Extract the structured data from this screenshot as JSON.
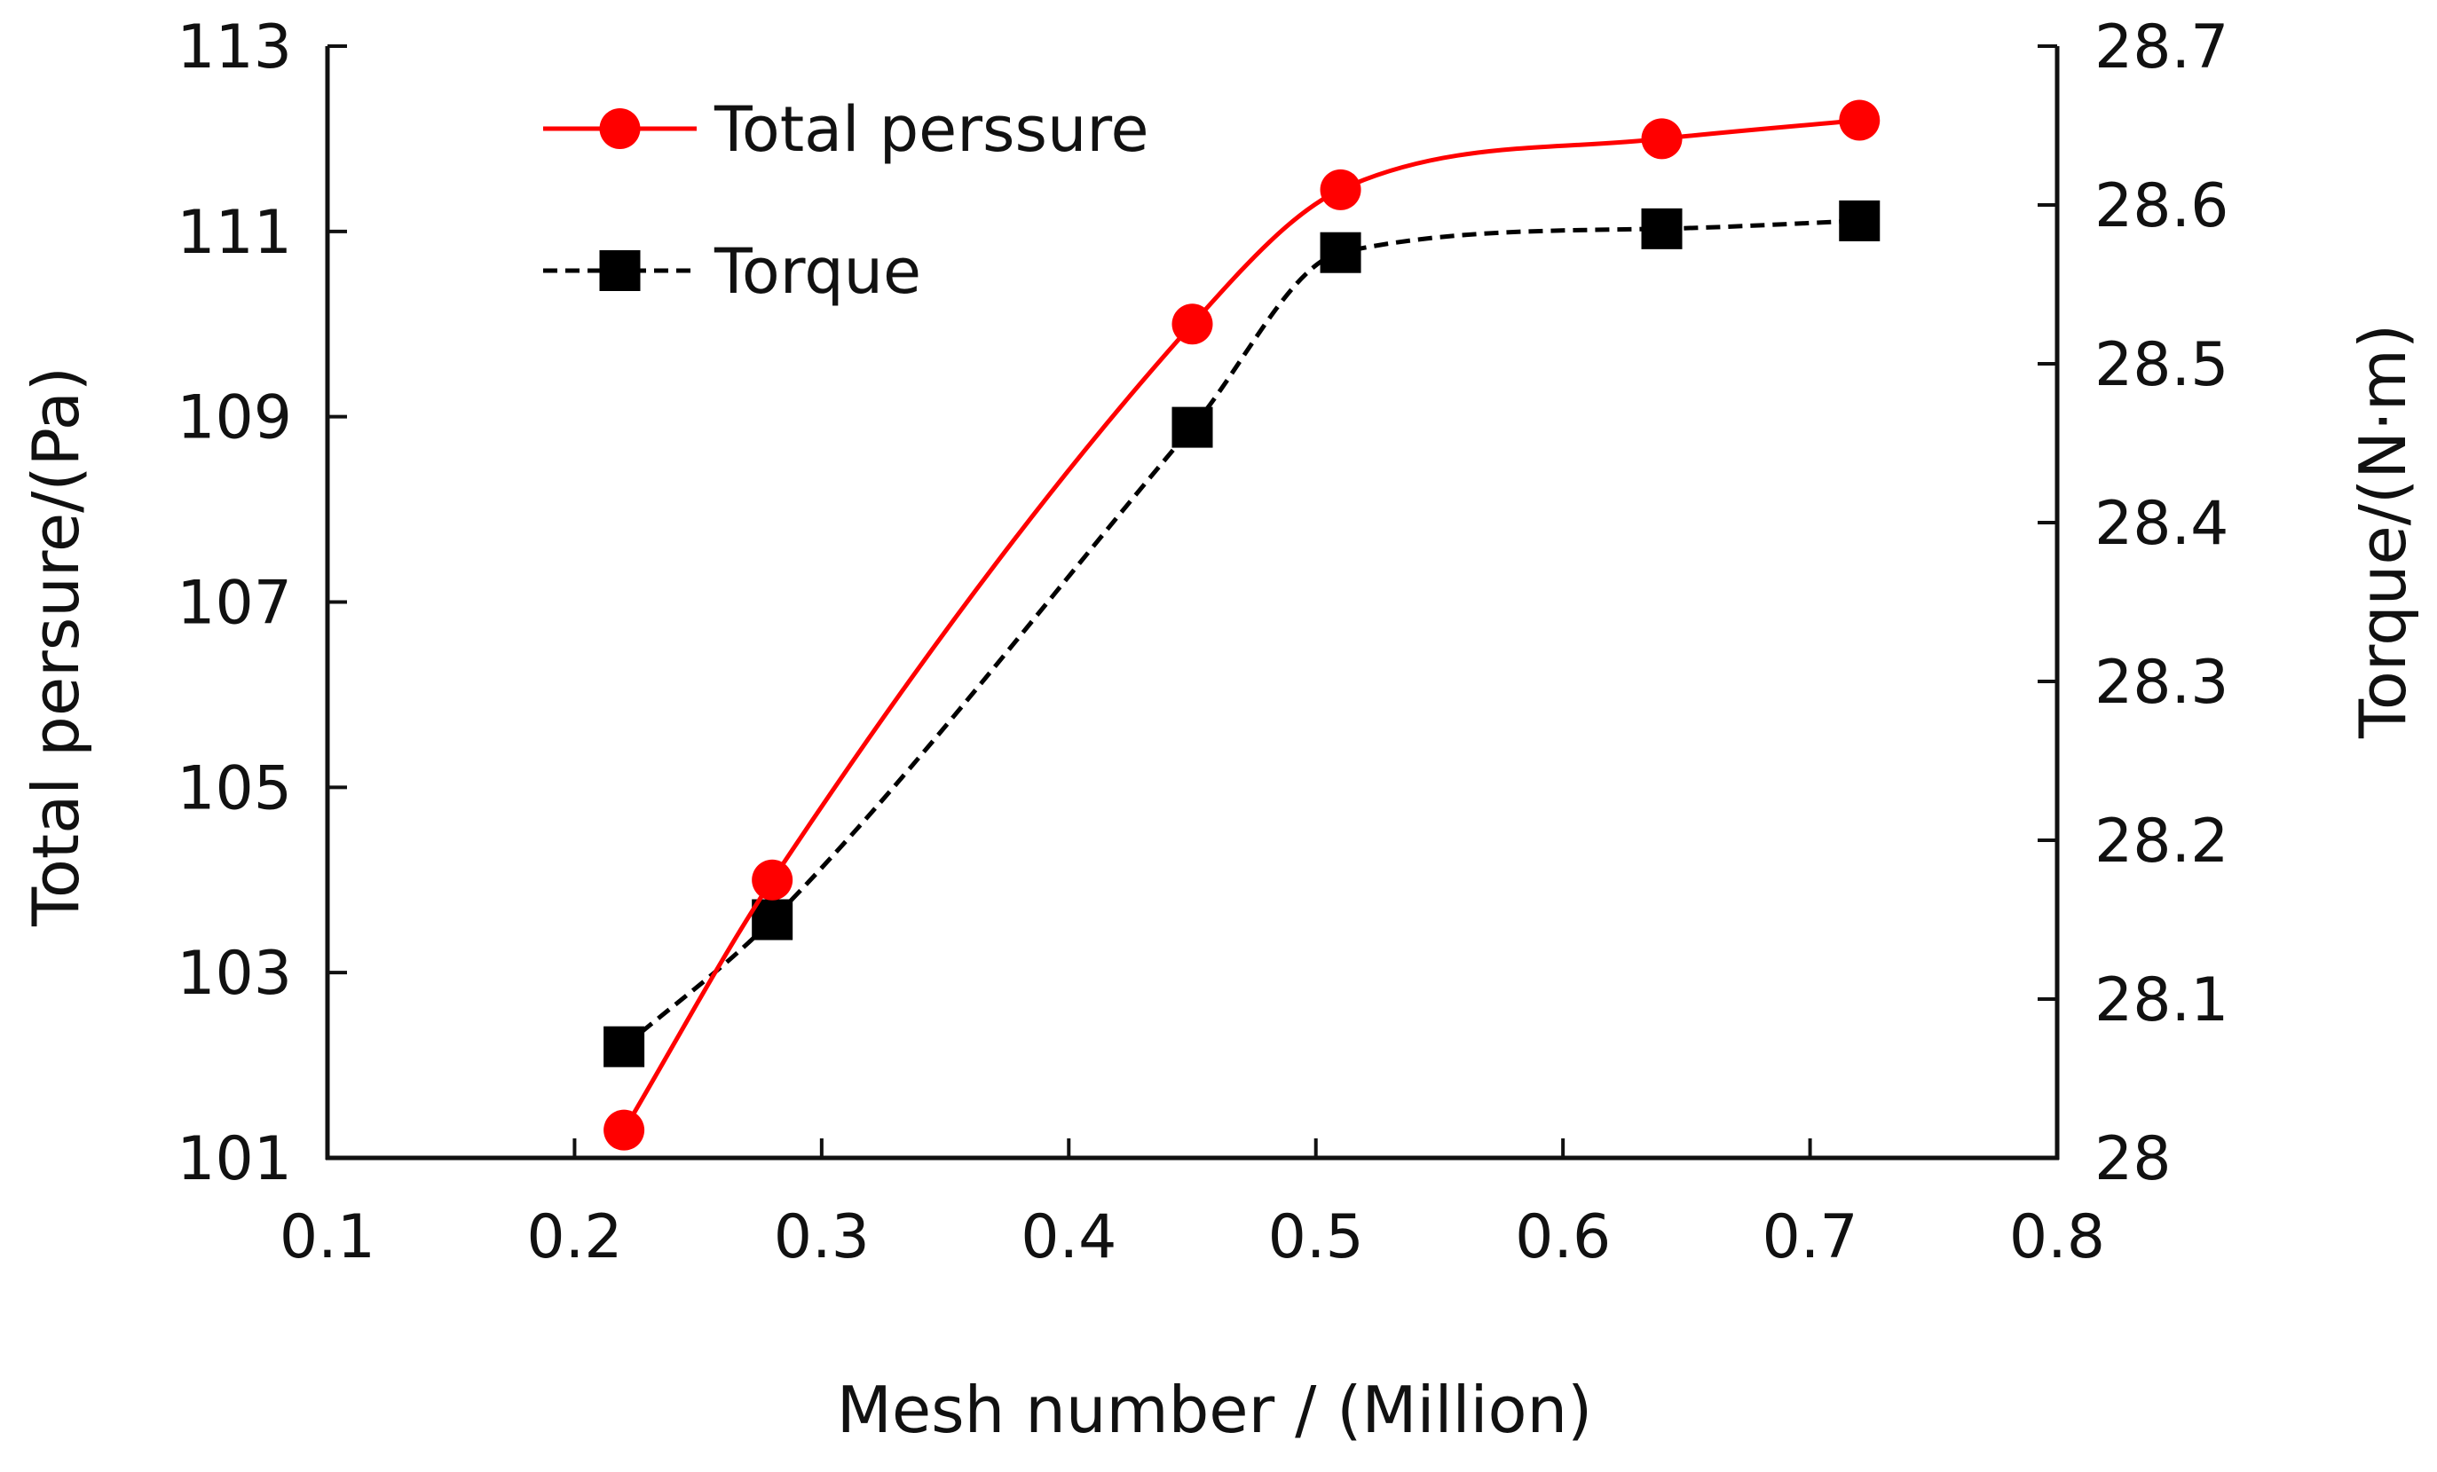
{
  "chart_data": {
    "type": "line",
    "title": "",
    "xlabel": "Mesh number / (Million)",
    "ylabel": "Total persure/(Pa)",
    "y2label": "Torque/(N·m)",
    "xlim": [
      0.1,
      0.8
    ],
    "ylim": [
      101,
      113
    ],
    "y2lim": [
      28,
      28.7
    ],
    "xticks": [
      "0.1",
      "0.2",
      "0.3",
      "0.4",
      "0.5",
      "0.6",
      "0.7",
      "0.8"
    ],
    "yticks": [
      "101",
      "103",
      "105",
      "107",
      "109",
      "111",
      "113"
    ],
    "y2ticks": [
      "28",
      "28.1",
      "28.2",
      "28.3",
      "28.4",
      "28.5",
      "28.6",
      "28.7"
    ],
    "grid": false,
    "legend_position": "top-left",
    "series": [
      {
        "name": "Total perssure",
        "axis": "left",
        "color": "#ff0000",
        "marker": "circle",
        "line_style": "solid",
        "smooth": true,
        "x": [
          0.22,
          0.28,
          0.45,
          0.51,
          0.64,
          0.72
        ],
        "y": [
          101.3,
          104.0,
          110.0,
          111.45,
          112.0,
          112.2
        ]
      },
      {
        "name": "Torque",
        "axis": "right",
        "color": "#000000",
        "marker": "square",
        "line_style": "dashed",
        "smooth": true,
        "x": [
          0.22,
          0.28,
          0.45,
          0.51,
          0.64,
          0.72
        ],
        "y": [
          28.07,
          28.15,
          28.46,
          28.57,
          28.585,
          28.59
        ]
      }
    ]
  }
}
